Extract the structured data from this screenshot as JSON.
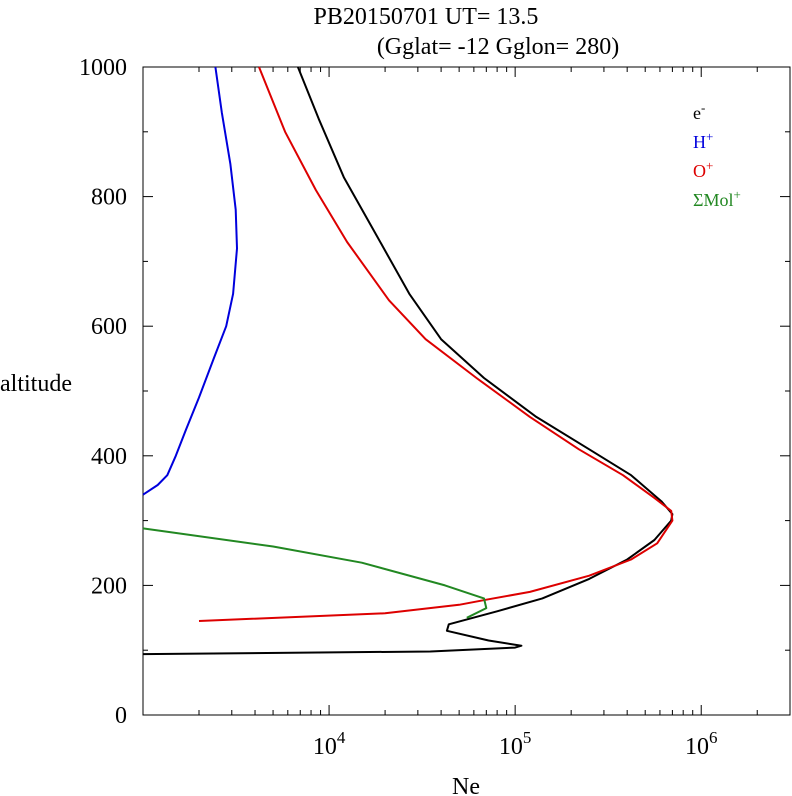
{
  "chart_data": {
    "type": "line",
    "title_line1": "PB20150701   UT=  13.5",
    "title_line2": "(Gglat= -12   Gglon=  280)",
    "xlabel": "Ne",
    "ylabel": "altitude",
    "x_scale": "log",
    "xlim": [
      1000,
      3000000
    ],
    "ylim": [
      0,
      1000
    ],
    "x_ticks": [
      {
        "value": 10000,
        "base": "10",
        "exp": "4"
      },
      {
        "value": 100000,
        "base": "10",
        "exp": "5"
      },
      {
        "value": 1000000,
        "base": "10",
        "exp": "6"
      }
    ],
    "y_ticks": [
      {
        "value": 0,
        "label": "0"
      },
      {
        "value": 200,
        "label": "200"
      },
      {
        "value": 400,
        "label": "400"
      },
      {
        "value": 600,
        "label": "600"
      },
      {
        "value": 800,
        "label": "800"
      },
      {
        "value": 1000,
        "label": "1000"
      }
    ],
    "y_minor_step": 100,
    "grid": false,
    "legend_position": "top-right",
    "series": [
      {
        "name_base": "e",
        "name_sup": "-",
        "color": "#000000",
        "points": [
          [
            1000,
            94
          ],
          [
            35000,
            98
          ],
          [
            100000,
            104
          ],
          [
            108000,
            107
          ],
          [
            72000,
            115
          ],
          [
            43000,
            130
          ],
          [
            44000,
            140
          ],
          [
            80000,
            160
          ],
          [
            140000,
            180
          ],
          [
            250000,
            210
          ],
          [
            400000,
            240
          ],
          [
            560000,
            270
          ],
          [
            690000,
            300
          ],
          [
            700000,
            310
          ],
          [
            610000,
            330
          ],
          [
            420000,
            370
          ],
          [
            250000,
            410
          ],
          [
            130000,
            460
          ],
          [
            68000,
            520
          ],
          [
            40000,
            580
          ],
          [
            27000,
            650
          ],
          [
            18000,
            740
          ],
          [
            12000,
            830
          ],
          [
            8800,
            920
          ],
          [
            6800,
            1000
          ]
        ]
      },
      {
        "name_base": "H",
        "name_sup": "+",
        "color": "#0000dd",
        "points": [
          [
            1000,
            340
          ],
          [
            1200,
            355
          ],
          [
            1350,
            370
          ],
          [
            1500,
            400
          ],
          [
            1700,
            440
          ],
          [
            2000,
            490
          ],
          [
            2400,
            550
          ],
          [
            2800,
            600
          ],
          [
            3050,
            650
          ],
          [
            3200,
            720
          ],
          [
            3150,
            780
          ],
          [
            2950,
            850
          ],
          [
            2650,
            930
          ],
          [
            2450,
            1000
          ]
        ]
      },
      {
        "name_base": "O",
        "name_sup": "+",
        "color": "#dd0000",
        "points": [
          [
            2000,
            145
          ],
          [
            20000,
            157
          ],
          [
            50000,
            170
          ],
          [
            70000,
            178
          ],
          [
            120000,
            190
          ],
          [
            250000,
            215
          ],
          [
            420000,
            240
          ],
          [
            580000,
            265
          ],
          [
            700000,
            300
          ],
          [
            690000,
            315
          ],
          [
            560000,
            335
          ],
          [
            380000,
            370
          ],
          [
            220000,
            410
          ],
          [
            120000,
            460
          ],
          [
            62000,
            520
          ],
          [
            33000,
            580
          ],
          [
            21000,
            640
          ],
          [
            12500,
            730
          ],
          [
            8500,
            810
          ],
          [
            5800,
            900
          ],
          [
            4200,
            1000
          ]
        ]
      },
      {
        "name_base": "ΣMol",
        "name_sup": "+",
        "color": "#228822",
        "points": [
          [
            1000,
            288
          ],
          [
            5000,
            260
          ],
          [
            15000,
            235
          ],
          [
            42000,
            200
          ],
          [
            68000,
            180
          ],
          [
            70000,
            165
          ],
          [
            55000,
            150
          ]
        ]
      }
    ]
  }
}
